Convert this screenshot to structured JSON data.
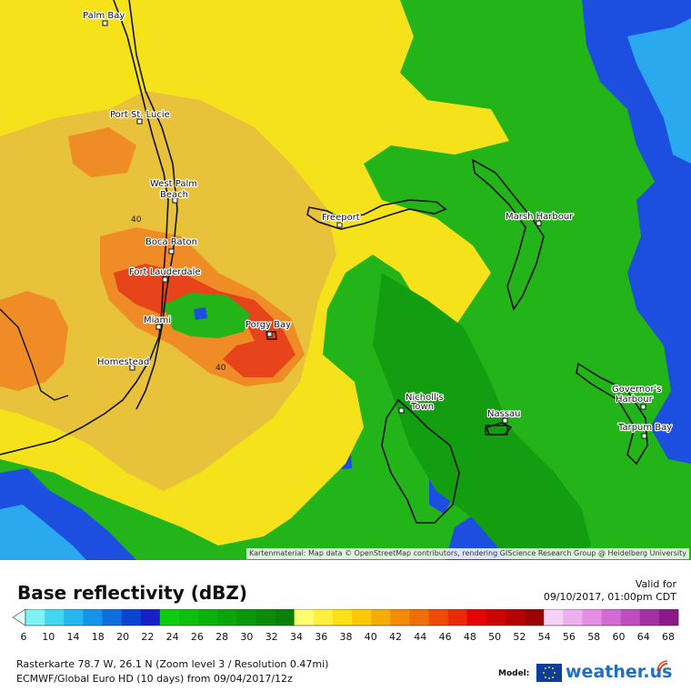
{
  "map": {
    "attribution": "Kartenmaterial: Map data © OpenStreetMap contributors, rendering GIScience Research Group @ Heidelberg University",
    "places": [
      {
        "name": "Palm Bay"
      },
      {
        "name": "Port St. Lucie"
      },
      {
        "name": "West Palm\nBeach"
      },
      {
        "name": "Boca Raton"
      },
      {
        "name": "Fort Lauderdale"
      },
      {
        "name": "Miami"
      },
      {
        "name": "Homestead"
      },
      {
        "name": "Porgy Bay"
      },
      {
        "name": "Freeport"
      },
      {
        "name": "Marsh Harbour"
      },
      {
        "name": "Nicholl's\nTown"
      },
      {
        "name": "Nassau"
      },
      {
        "name": "Governor's\nHarbour"
      },
      {
        "name": "Tarpum Bay"
      }
    ],
    "contour_labels": [
      "40",
      "40"
    ]
  },
  "legend": {
    "title": "Base reflectivity (dBZ)",
    "valid_label": "Valid for",
    "valid_date": "09/10/2017, 01:00pm CDT",
    "ticks": [
      "6",
      "10",
      "14",
      "18",
      "20",
      "22",
      "24",
      "26",
      "28",
      "30",
      "32",
      "34",
      "36",
      "38",
      "40",
      "42",
      "44",
      "46",
      "48",
      "50",
      "52",
      "54",
      "56",
      "58",
      "60",
      "64",
      "68"
    ],
    "colors": [
      "#7ff3f3",
      "#44d6f0",
      "#24b8ee",
      "#1295e8",
      "#0d6fdc",
      "#0a45d0",
      "#1a1ec8",
      "#10cc10",
      "#0ec00e",
      "#0bb20b",
      "#0aa50a",
      "#0a980a",
      "#0a8c0a",
      "#0a800a",
      "#ffff70",
      "#fff040",
      "#fde018",
      "#fcc808",
      "#f6ac06",
      "#f28c06",
      "#f06e06",
      "#ee4c06",
      "#ea2a06",
      "#e40606",
      "#cc0404",
      "#b40404",
      "#9c0404",
      "#f6d2f6",
      "#eeb0ee",
      "#e48ee4",
      "#d46ad4",
      "#c04cc0",
      "#a430a4",
      "#8c188c"
    ],
    "model_label": "Model:",
    "brand": "weather.us"
  },
  "footer": {
    "line1": "Rasterkarte 78.7 W, 26.1 N (Zoom level 3 / Resolution 0.47mi)",
    "line2": "ECMWF/Global Euro HD (10 days) from 09/04/2017/12z"
  },
  "palette": {
    "yellow": "#f5e21b",
    "tan": "#e7c23a",
    "orange": "#ef8c26",
    "red": "#e8441c",
    "green": "#23b41a",
    "darkgreen": "#139d10",
    "blue": "#1c4fe0",
    "cyan": "#2aa9ee"
  }
}
